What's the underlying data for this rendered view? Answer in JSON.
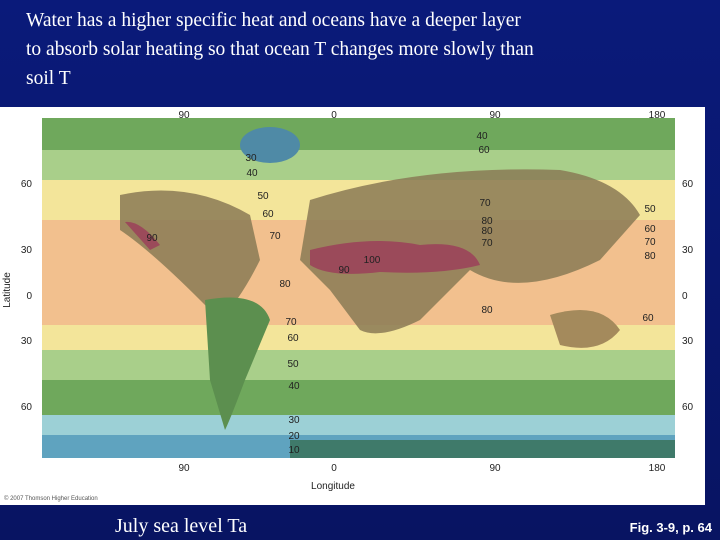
{
  "slide": {
    "title_lines": [
      "Water has a higher specific heat and oceans have a deeper layer",
      "to absorb solar heating so that ocean T changes more slowly than",
      "soil T"
    ],
    "caption": "July sea level Ta",
    "figure_ref": "Fig. 3-9, p. 64"
  },
  "map": {
    "y_axis_label": "Latitude",
    "x_axis_label": "Longitude",
    "copyright": "© 2007 Thomson Higher Education",
    "top_ticks": [
      "90",
      "0",
      "90",
      "180"
    ],
    "bottom_ticks": [
      "90",
      "0",
      "90",
      "180"
    ],
    "left_ticks": [
      "60",
      "30",
      "0",
      "30",
      "60"
    ],
    "right_ticks": [
      "60",
      "30",
      "0",
      "30",
      "60"
    ],
    "isotherm_labels": [
      "30",
      "40",
      "50",
      "60",
      "70",
      "90",
      "80",
      "70",
      "60",
      "50",
      "40",
      "30",
      "20",
      "10",
      "90",
      "100",
      "80",
      "70",
      "80",
      "80",
      "70",
      "40",
      "60",
      "50",
      "60",
      "70",
      "80",
      "60"
    ]
  }
}
